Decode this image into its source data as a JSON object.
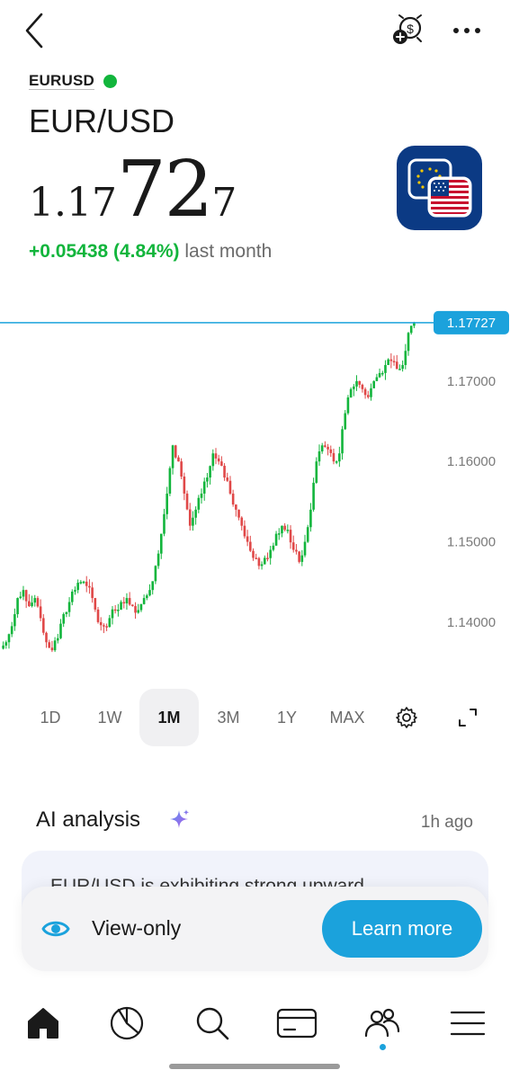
{
  "header": {
    "ticker": "EURUSD",
    "pair_name": "EUR/USD",
    "price_prefix": "1.17",
    "price_main": "72",
    "price_suffix": "7",
    "change_value": "+0.05438 (4.84%)",
    "change_period": "last month"
  },
  "icons": {
    "back": "chevron-left-icon",
    "alert": "price-alert-icon",
    "more": "more-dots-icon",
    "flag": "eur-usd-flag-icon"
  },
  "chart_data": {
    "type": "candlestick",
    "current_price": 1.17727,
    "current_price_label": "1.17727",
    "y_ticks": [
      1.17,
      1.16,
      1.15,
      1.14
    ],
    "y_tick_labels": [
      "1.17000",
      "1.16000",
      "1.15000",
      "1.14000"
    ],
    "ylim": [
      1.1335,
      1.1805
    ],
    "up_color": "#12b53c",
    "down_color": "#e04848",
    "price_line_color": "#1ba2dc",
    "closes": [
      1.1375,
      1.1395,
      1.143,
      1.144,
      1.142,
      1.143,
      1.1405,
      1.1375,
      1.1365,
      1.138,
      1.141,
      1.1425,
      1.144,
      1.145,
      1.1445,
      1.143,
      1.14,
      1.1395,
      1.1405,
      1.1415,
      1.1425,
      1.143,
      1.142,
      1.1415,
      1.143,
      1.144,
      1.147,
      1.151,
      1.156,
      1.162,
      1.16,
      1.156,
      1.152,
      1.154,
      1.156,
      1.158,
      1.161,
      1.16,
      1.158,
      1.156,
      1.154,
      1.152,
      1.15,
      1.148,
      1.147,
      1.148,
      1.149,
      1.151,
      1.152,
      1.1515,
      1.149,
      1.1475,
      1.15,
      1.154,
      1.16,
      1.162,
      1.1615,
      1.16,
      1.161,
      1.166,
      1.169,
      1.17,
      1.169,
      1.168,
      1.17,
      1.171,
      1.172,
      1.1725,
      1.1715,
      1.172,
      1.176,
      1.17727
    ]
  },
  "ranges": {
    "items": [
      "1D",
      "1W",
      "1M",
      "3M",
      "1Y",
      "MAX"
    ],
    "active": "1M",
    "settings_icon": "gear-icon",
    "fullscreen_icon": "expand-icon"
  },
  "ai": {
    "title": "AI analysis",
    "time": "1h ago",
    "text": "EUR/USD is exhibiting strong upward",
    "sparkle_icon": "sparkle-icon"
  },
  "viewonly": {
    "label": "View-only",
    "button": "Learn more",
    "eye_icon": "eye-icon"
  },
  "tabbar": {
    "items": [
      "home-icon",
      "portfolio-pie-icon",
      "search-icon",
      "card-icon",
      "community-icon",
      "menu-icon"
    ],
    "active_dot_under": "community-icon"
  }
}
